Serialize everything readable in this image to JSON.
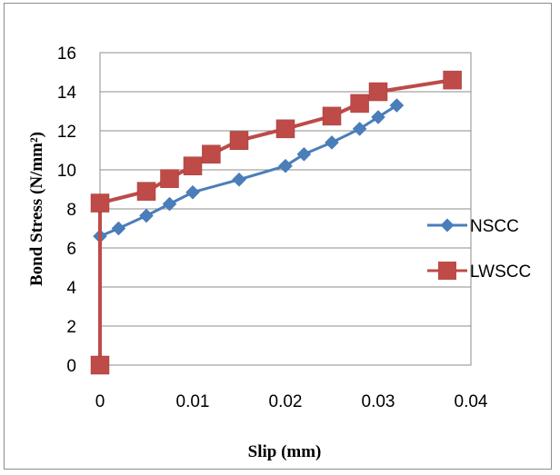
{
  "chart_data": {
    "type": "line",
    "xlabel": "Slip (mm)",
    "ylabel": "Bond Stress (N/mm²)",
    "xlim": [
      0,
      0.04
    ],
    "ylim": [
      0,
      16
    ],
    "x_ticks": [
      "0",
      "0.01",
      "0.02",
      "0.03",
      "0.04"
    ],
    "y_ticks": [
      "0",
      "2",
      "4",
      "6",
      "8",
      "10",
      "12",
      "14",
      "16"
    ],
    "grid": "horizontal",
    "legend_position": "right",
    "series": [
      {
        "name": "NSCC",
        "color": "#4a7ebb",
        "marker": "diamond",
        "points": [
          [
            0,
            0
          ],
          [
            0,
            6.6
          ],
          [
            0.002,
            7.0
          ],
          [
            0.005,
            7.65
          ],
          [
            0.0075,
            8.25
          ],
          [
            0.01,
            8.85
          ],
          [
            0.015,
            9.5
          ],
          [
            0.02,
            10.2
          ],
          [
            0.022,
            10.8
          ],
          [
            0.025,
            11.4
          ],
          [
            0.028,
            12.1
          ],
          [
            0.03,
            12.7
          ],
          [
            0.032,
            13.3
          ]
        ]
      },
      {
        "name": "LWSCC",
        "color": "#be4b48",
        "marker": "square",
        "points": [
          [
            0,
            0
          ],
          [
            0,
            8.3
          ],
          [
            0.005,
            8.9
          ],
          [
            0.0075,
            9.55
          ],
          [
            0.01,
            10.2
          ],
          [
            0.012,
            10.8
          ],
          [
            0.015,
            11.5
          ],
          [
            0.02,
            12.1
          ],
          [
            0.025,
            12.75
          ],
          [
            0.028,
            13.4
          ],
          [
            0.03,
            14.0
          ],
          [
            0.038,
            14.6
          ]
        ]
      }
    ]
  }
}
